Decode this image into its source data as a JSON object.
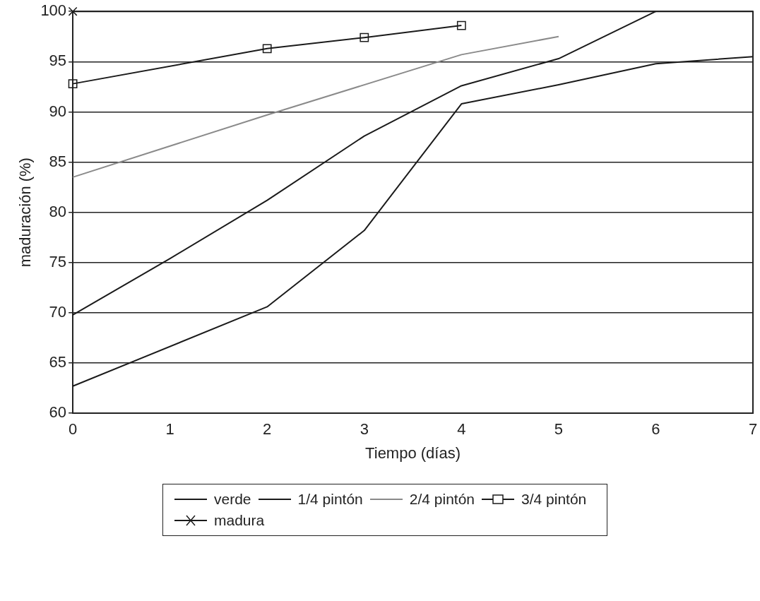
{
  "chart_data": {
    "type": "line",
    "xlabel": "Tiempo (días)",
    "ylabel": "maduración (%)",
    "xlim": [
      0,
      7
    ],
    "xticks": [
      0,
      1,
      2,
      3,
      4,
      5,
      6,
      7
    ],
    "ylim": [
      60,
      100
    ],
    "yticks": [
      60,
      65,
      70,
      75,
      80,
      85,
      90,
      95,
      100
    ],
    "grid": "y",
    "legend": "bottom",
    "line_style": "solid",
    "series": [
      {
        "name": "verde",
        "color": "#1a1a1a",
        "marker": "none",
        "x": [
          0,
          2,
          3,
          4,
          5,
          6,
          7
        ],
        "values": [
          62.7,
          70.6,
          78.2,
          90.8,
          92.7,
          94.8,
          95.5
        ]
      },
      {
        "name": "1/4 pintón",
        "color": "#1a1a1a",
        "marker": "none",
        "x": [
          0,
          1,
          2,
          3,
          4,
          5,
          6
        ],
        "values": [
          69.8,
          75.4,
          81.2,
          87.6,
          92.6,
          95.3,
          100
        ]
      },
      {
        "name": "2/4 pintón",
        "color": "#8a8a8a",
        "marker": "none",
        "x": [
          0,
          2,
          4,
          5
        ],
        "values": [
          83.5,
          89.7,
          95.7,
          97.5
        ]
      },
      {
        "name": "3/4 pintón",
        "color": "#1a1a1a",
        "marker": "square",
        "x": [
          0,
          2,
          3,
          4
        ],
        "values": [
          92.8,
          96.3,
          97.4,
          98.6
        ]
      },
      {
        "name": "madura",
        "color": "#1a1a1a",
        "marker": "cross",
        "x": [
          0
        ],
        "values": [
          100
        ]
      }
    ]
  }
}
